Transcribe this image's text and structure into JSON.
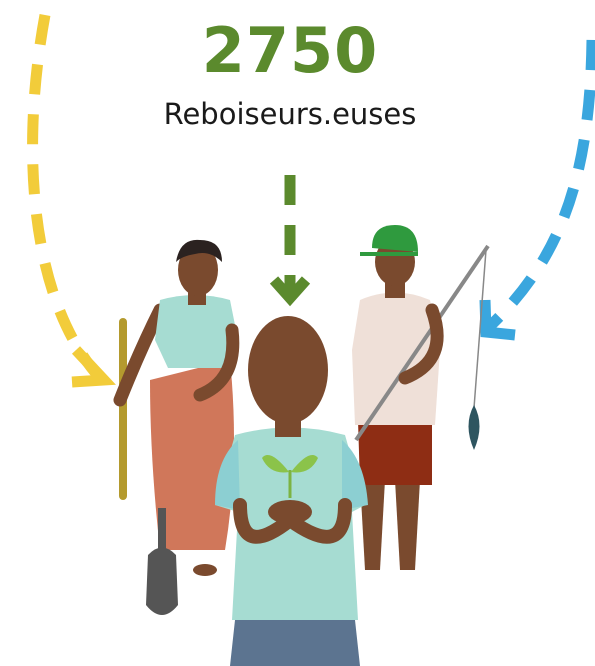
{
  "figure": {
    "value": 2750,
    "label": "Reboiseurs.euses"
  }
}
